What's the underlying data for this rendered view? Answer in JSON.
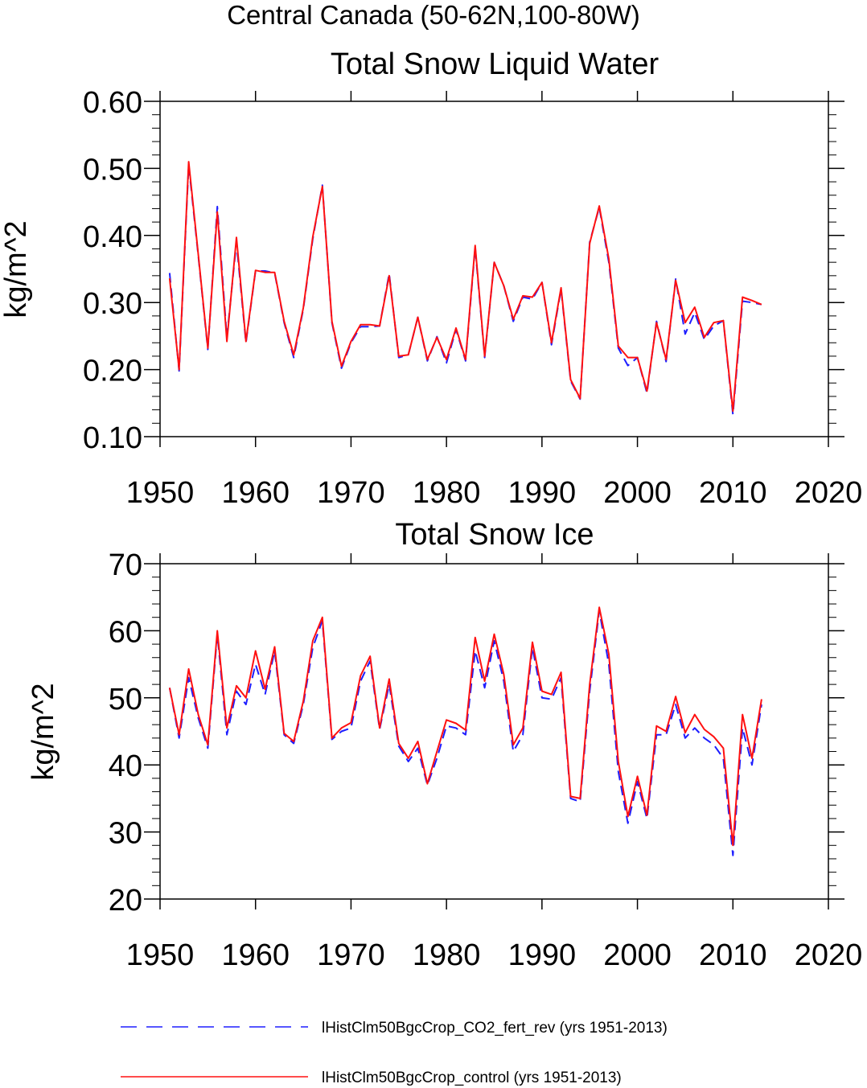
{
  "figure": {
    "supertitle": "Central Canada (50-62N,100-80W)"
  },
  "colors": {
    "fert_rev": "#1e1eff",
    "control": "#ff1010",
    "axis": "#000000",
    "background": "#ffffff"
  },
  "legend": {
    "placement": "bottom",
    "items": [
      {
        "label": "lHistClm50BgcCrop_CO2_fert_rev (yrs 1951-2013)",
        "style": "dashed",
        "color": "#1e1eff"
      },
      {
        "label": "lHistClm50BgcCrop_control (yrs 1951-2013)",
        "style": "solid",
        "color": "#ff1010"
      }
    ]
  },
  "chart_data": [
    {
      "type": "line",
      "title": "Total Snow Liquid Water",
      "xlabel": "",
      "ylabel": "kg/m^2",
      "xlim": [
        1950,
        2020
      ],
      "ylim": [
        0.1,
        0.6
      ],
      "xticks": [
        1950,
        1960,
        1970,
        1980,
        1990,
        2000,
        2010,
        2020
      ],
      "xtick_labels": [
        "1950",
        "1960",
        "1970",
        "1980",
        "1990",
        "2000",
        "2010",
        "2020"
      ],
      "yticks": [
        0.1,
        0.2,
        0.3,
        0.4,
        0.5,
        0.6
      ],
      "ytick_labels": [
        "0.10",
        "0.20",
        "0.30",
        "0.40",
        "0.50",
        "0.60"
      ],
      "grid": false,
      "x": [
        1951,
        1952,
        1953,
        1954,
        1955,
        1956,
        1957,
        1958,
        1959,
        1960,
        1961,
        1962,
        1963,
        1964,
        1965,
        1966,
        1967,
        1968,
        1969,
        1970,
        1971,
        1972,
        1973,
        1974,
        1975,
        1976,
        1977,
        1978,
        1979,
        1980,
        1981,
        1982,
        1983,
        1984,
        1985,
        1986,
        1987,
        1988,
        1989,
        1990,
        1991,
        1992,
        1993,
        1994,
        1995,
        1996,
        1997,
        1998,
        1999,
        2000,
        2001,
        2002,
        2003,
        2004,
        2005,
        2006,
        2007,
        2008,
        2009,
        2010,
        2011,
        2012,
        2013
      ],
      "series": [
        {
          "name": "lHistClm50BgcCrop_CO2_fert_rev (yrs 1951-2013)",
          "style": "dashed",
          "values": [
            0.344,
            0.198,
            0.505,
            0.37,
            0.23,
            0.443,
            0.248,
            0.39,
            0.24,
            0.347,
            0.347,
            0.344,
            0.27,
            0.218,
            0.29,
            0.395,
            0.475,
            0.27,
            0.202,
            0.24,
            0.264,
            0.264,
            0.265,
            0.343,
            0.218,
            0.222,
            0.278,
            0.213,
            0.249,
            0.21,
            0.26,
            0.213,
            0.382,
            0.218,
            0.36,
            0.325,
            0.272,
            0.308,
            0.305,
            0.33,
            0.237,
            0.32,
            0.183,
            0.156,
            0.39,
            0.442,
            0.36,
            0.232,
            0.206,
            0.218,
            0.165,
            0.272,
            0.212,
            0.335,
            0.253,
            0.285,
            0.245,
            0.265,
            0.273,
            0.133,
            0.302,
            0.3,
            0.297
          ]
        },
        {
          "name": "lHistClm50BgcCrop_control (yrs 1951-2013)",
          "style": "solid",
          "values": [
            0.336,
            0.2,
            0.51,
            0.372,
            0.232,
            0.435,
            0.242,
            0.397,
            0.242,
            0.348,
            0.345,
            0.345,
            0.272,
            0.222,
            0.292,
            0.398,
            0.473,
            0.272,
            0.205,
            0.242,
            0.267,
            0.267,
            0.265,
            0.34,
            0.22,
            0.222,
            0.278,
            0.215,
            0.248,
            0.215,
            0.262,
            0.215,
            0.385,
            0.22,
            0.36,
            0.325,
            0.275,
            0.31,
            0.308,
            0.33,
            0.24,
            0.322,
            0.185,
            0.157,
            0.388,
            0.444,
            0.365,
            0.235,
            0.218,
            0.218,
            0.168,
            0.27,
            0.215,
            0.333,
            0.27,
            0.293,
            0.248,
            0.27,
            0.273,
            0.138,
            0.308,
            0.303,
            0.297
          ]
        }
      ]
    },
    {
      "type": "line",
      "title": "Total Snow Ice",
      "xlabel": "",
      "ylabel": "kg/m^2",
      "xlim": [
        1950,
        2020
      ],
      "ylim": [
        20,
        70
      ],
      "xticks": [
        1950,
        1960,
        1970,
        1980,
        1990,
        2000,
        2010,
        2020
      ],
      "xtick_labels": [
        "1950",
        "1960",
        "1970",
        "1980",
        "1990",
        "2000",
        "2010",
        "2020"
      ],
      "yticks": [
        20,
        30,
        40,
        50,
        60,
        70
      ],
      "ytick_labels": [
        "20",
        "30",
        "40",
        "50",
        "60",
        "70"
      ],
      "grid": false,
      "x": [
        1951,
        1952,
        1953,
        1954,
        1955,
        1956,
        1957,
        1958,
        1959,
        1960,
        1961,
        1962,
        1963,
        1964,
        1965,
        1966,
        1967,
        1968,
        1969,
        1970,
        1971,
        1972,
        1973,
        1974,
        1975,
        1976,
        1977,
        1978,
        1979,
        1980,
        1981,
        1982,
        1983,
        1984,
        1985,
        1986,
        1987,
        1988,
        1989,
        1990,
        1991,
        1992,
        1993,
        1994,
        1995,
        1996,
        1997,
        1998,
        1999,
        2000,
        2001,
        2002,
        2003,
        2004,
        2005,
        2006,
        2007,
        2008,
        2009,
        2010,
        2011,
        2012,
        2013
      ],
      "series": [
        {
          "name": "lHistClm50BgcCrop_CO2_fert_rev (yrs 1951-2013)",
          "style": "dashed",
          "values": [
            51.5,
            44.0,
            53.0,
            47.0,
            42.5,
            59.5,
            44.5,
            51.0,
            49.0,
            55.0,
            50.5,
            57.0,
            44.5,
            43.2,
            49.0,
            57.5,
            61.5,
            43.8,
            45.0,
            45.5,
            52.5,
            55.5,
            45.3,
            52.0,
            42.8,
            40.5,
            42.5,
            37.0,
            41.0,
            45.8,
            45.5,
            44.5,
            57.0,
            51.5,
            58.5,
            52.5,
            42.0,
            44.5,
            57.5,
            50.0,
            49.8,
            53.0,
            35.0,
            34.5,
            51.0,
            63.0,
            55.0,
            39.0,
            31.3,
            37.5,
            32.0,
            44.5,
            44.5,
            49.0,
            44.0,
            45.5,
            44.0,
            43.0,
            41.0,
            26.5,
            45.5,
            40.0,
            49.0
          ]
        },
        {
          "name": "lHistClm50BgcCrop_control (yrs 1951-2013)",
          "style": "solid",
          "values": [
            51.5,
            44.5,
            54.3,
            47.5,
            43.0,
            60.0,
            45.5,
            51.8,
            50.0,
            57.0,
            51.3,
            57.6,
            44.7,
            43.5,
            49.5,
            58.5,
            62.0,
            44.0,
            45.5,
            46.3,
            53.3,
            56.2,
            45.5,
            52.8,
            43.2,
            41.0,
            43.5,
            37.2,
            42.0,
            46.7,
            46.2,
            45.2,
            59.0,
            52.5,
            59.5,
            53.5,
            43.0,
            45.5,
            58.3,
            51.0,
            50.5,
            53.8,
            35.3,
            35.0,
            52.0,
            63.5,
            56.5,
            40.5,
            32.3,
            38.3,
            32.5,
            45.8,
            45.0,
            50.2,
            44.8,
            47.5,
            45.3,
            44.2,
            42.5,
            28.0,
            47.5,
            41.0,
            49.8
          ]
        }
      ]
    }
  ]
}
